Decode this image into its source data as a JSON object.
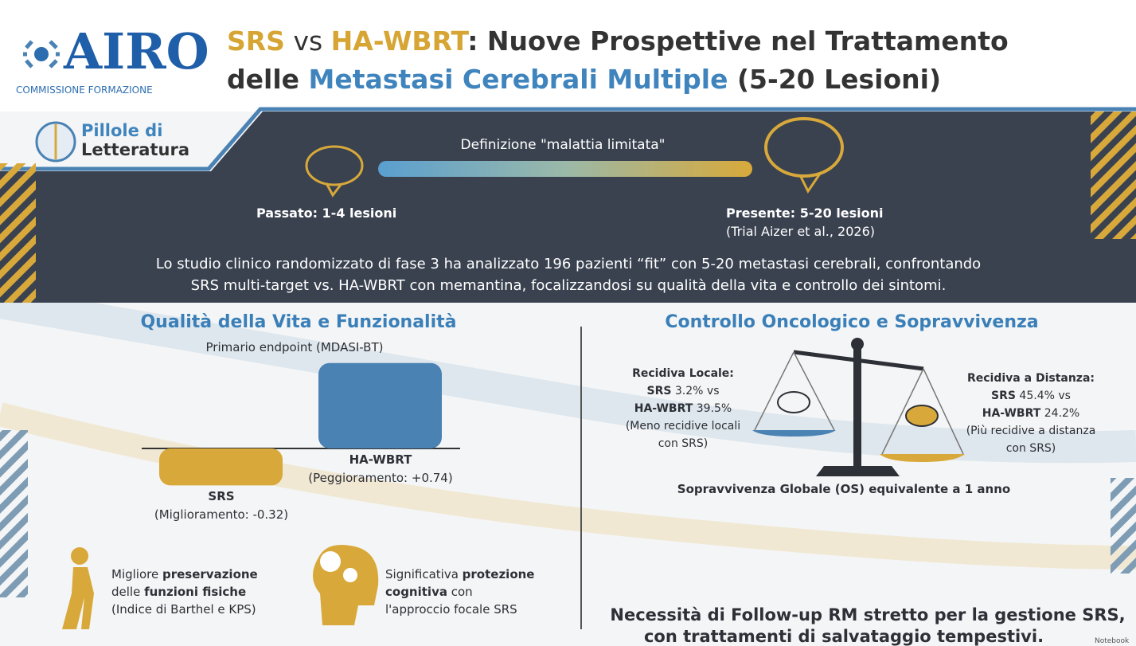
{
  "header": {
    "logo": "AIRO",
    "logo_sub": "COMMISSIONE FORMAZIONE",
    "title_line1": [
      "SRS",
      " vs ",
      "HA-WBRT",
      ": Nuove Prospettive nel Trattamento"
    ],
    "title_line2": [
      "delle ",
      "Metastasi Cerebrali Multiple",
      " (5-20 Lesioni)"
    ]
  },
  "badge": [
    "Pillole di",
    "Letteratura"
  ],
  "timeline": {
    "label": "Definizione \"malattia limitata\"",
    "past": "Passato: 1-4 lesioni",
    "present": "Presente: 5-20 lesioni",
    "present_note": "(Trial Aizer et al., 2026)"
  },
  "summary": [
    "Lo studio clinico randomizzato di fase 3 ha analizzato 196 pazienti “fit” con 5-20 metastasi cerebrali, confrontando",
    "SRS multi-target vs. HA-WBRT con memantina, focalizzandosi su qualità della vita e controllo dei sintomi."
  ],
  "qol": {
    "title": "Qualità della Vita e Funzionalità",
    "chart": {
      "type": "bar",
      "subtitle": "Primario endpoint (MDASI-BT)",
      "categories": [
        "SRS",
        "HA-WBRT"
      ],
      "values": [
        -0.32,
        0.74
      ],
      "value_labels": [
        "(Miglioramento: -0.32)",
        "(Peggioramento: +0.74)"
      ],
      "colors": [
        "#d8a93a",
        "#4a82b4"
      ]
    },
    "features": [
      {
        "lines": [
          [
            "Migliore ",
            "preservazione"
          ],
          [
            "delle ",
            "funzioni fisiche"
          ],
          [
            "(Indice di Barthel e KPS)"
          ]
        ]
      },
      {
        "lines": [
          [
            "Significativa ",
            "protezione"
          ],
          [
            "cognitiva",
            " con"
          ],
          [
            "l'approccio focale SRS"
          ]
        ]
      }
    ]
  },
  "oncology": {
    "title": "Controllo Oncologico e Sopravvivenza",
    "local": [
      "Recidiva Locale:",
      "SRS",
      " 3.2% vs",
      "HA-WBRT",
      " 39.5%",
      "(Meno recidive locali",
      "con SRS)"
    ],
    "distant": [
      "Recidiva a Distanza:",
      "SRS",
      " 45.4% vs",
      "HA-WBRT",
      " 24.2%",
      "(Più recidive a distanza",
      "con SRS)"
    ],
    "survival": "Sopravvivenza Globale (OS) equivalente a 1 anno"
  },
  "footer": [
    "Necessità di Follow-up RM stretto per la gestione SRS,",
    "con trattamenti di salvataggio tempestivi."
  ],
  "watermark": "Notebook"
}
